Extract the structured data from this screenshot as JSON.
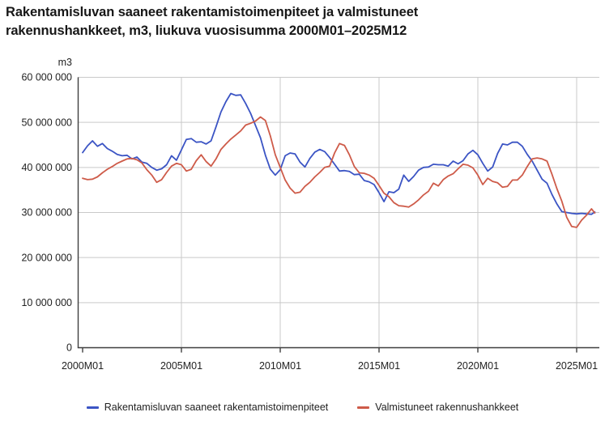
{
  "title": "Rakentamisluvan saaneet rakentamistoimenpiteet ja valmistuneet rakennushankkeet, m3, liukuva vuosisumma 2000M01–2025M12",
  "legend": {
    "items": [
      {
        "label": "Rakentamisluvan saaneet rakentamistoimenpiteet",
        "color": "#3b54c4"
      },
      {
        "label": "Valmistuneet rakennushankkeet",
        "color": "#ce5b49"
      }
    ]
  },
  "chart_data": {
    "type": "line",
    "unit_label": "m3",
    "value_unit": "m3, rolling 12-month sum",
    "y_tick_labels": [
      "60 000 000",
      "50 000 000",
      "40 000 000",
      "30 000 000",
      "20 000 000",
      "10 000 000",
      "0"
    ],
    "y_tick_values_mm3": [
      60,
      50,
      40,
      30,
      20,
      10,
      0
    ],
    "ylim_mm3": [
      0,
      60
    ],
    "x_tick_labels": [
      "2000M01",
      "2005M01",
      "2010M01",
      "2015M01",
      "2020M01",
      "2025M01"
    ],
    "x_range": {
      "start": "2000M01",
      "end": "2025M12"
    },
    "sampling": "quarterly from 2000M01 (months 0,3,6,...309) plus final point 2025M12 (month 311)",
    "interval_months": 3,
    "grid": true,
    "legend_position": "bottom",
    "series": [
      {
        "name": "Rakentamisluvan saaneet rakentamistoimenpiteet",
        "color": "#3b54c4",
        "values_mm3": [
          43.3,
          44.8,
          45.9,
          44.7,
          45.3,
          44.2,
          43.6,
          42.9,
          42.6,
          42.7,
          41.9,
          42.3,
          41.2,
          40.9,
          40.0,
          39.4,
          39.7,
          40.6,
          42.6,
          41.6,
          43.9,
          46.2,
          46.4,
          45.6,
          45.7,
          45.2,
          45.9,
          49.0,
          52.3,
          54.6,
          56.4,
          56.0,
          56.1,
          54.2,
          52.0,
          49.3,
          46.6,
          42.7,
          39.6,
          38.3,
          39.5,
          42.6,
          43.2,
          43.0,
          41.2,
          40.1,
          42.0,
          43.4,
          44.0,
          43.5,
          42.2,
          40.7,
          39.2,
          39.3,
          39.1,
          38.4,
          38.5,
          37.1,
          36.8,
          36.2,
          34.4,
          32.4,
          34.6,
          34.4,
          35.2,
          38.3,
          36.9,
          38.0,
          39.4,
          40.0,
          40.1,
          40.7,
          40.6,
          40.6,
          40.3,
          41.4,
          40.8,
          41.5,
          43.0,
          43.8,
          42.8,
          40.9,
          39.2,
          40.1,
          43.1,
          45.2,
          45.0,
          45.6,
          45.6,
          44.7,
          42.9,
          41.4,
          39.4,
          37.4,
          36.5,
          34.0,
          31.9,
          30.2,
          30.0,
          29.8,
          29.7,
          29.8,
          29.7,
          29.6,
          30.1
        ]
      },
      {
        "name": "Valmistuneet rakennushankkeet",
        "color": "#ce5b49",
        "values_mm3": [
          37.6,
          37.3,
          37.4,
          37.9,
          38.8,
          39.6,
          40.2,
          40.9,
          41.4,
          41.9,
          42.0,
          41.7,
          41.0,
          39.5,
          38.3,
          36.7,
          37.3,
          38.9,
          40.3,
          40.9,
          40.6,
          39.2,
          39.6,
          41.5,
          42.8,
          41.3,
          40.3,
          41.9,
          44.0,
          45.2,
          46.3,
          47.2,
          48.1,
          49.4,
          49.8,
          50.3,
          51.2,
          50.4,
          47.0,
          42.8,
          40.0,
          37.2,
          35.4,
          34.3,
          34.5,
          35.8,
          36.7,
          37.9,
          38.9,
          40.0,
          40.3,
          43.2,
          45.3,
          44.9,
          42.8,
          40.2,
          38.8,
          38.7,
          38.3,
          37.6,
          36.0,
          34.3,
          33.5,
          32.2,
          31.5,
          31.4,
          31.2,
          31.9,
          32.8,
          33.9,
          34.7,
          36.5,
          35.9,
          37.3,
          38.1,
          38.6,
          39.7,
          40.7,
          40.5,
          39.9,
          38.3,
          36.2,
          37.6,
          36.9,
          36.6,
          35.6,
          35.8,
          37.2,
          37.2,
          38.3,
          40.2,
          41.9,
          42.1,
          41.9,
          41.4,
          38.5,
          35.3,
          32.5,
          28.9,
          26.9,
          26.7,
          28.3,
          29.4,
          30.8,
          29.9
        ]
      }
    ]
  }
}
